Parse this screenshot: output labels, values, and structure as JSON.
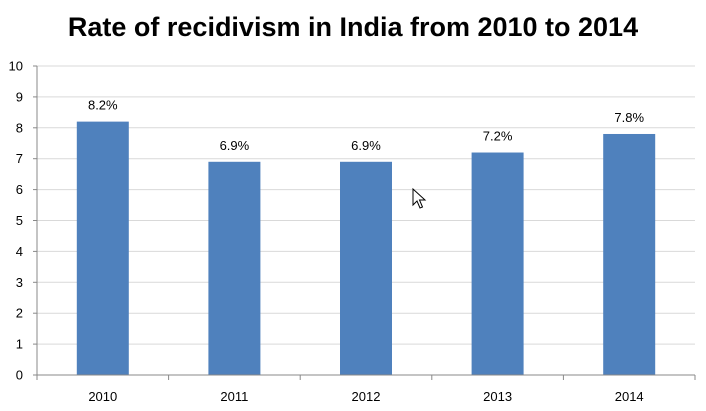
{
  "chart_data": {
    "type": "bar",
    "title": "Rate of recidivism in India from 2010 to 2014",
    "xlabel": "",
    "ylabel": "",
    "categories": [
      "2010",
      "2011",
      "2012",
      "2013",
      "2014"
    ],
    "values": [
      8.2,
      6.9,
      6.9,
      7.2,
      7.8
    ],
    "data_labels": [
      "8.2%",
      "6.9%",
      "6.9%",
      "7.2%",
      "7.8%"
    ],
    "ylim": [
      0,
      10
    ],
    "yticks": [
      "0",
      "1",
      "2",
      "3",
      "4",
      "5",
      "6",
      "7",
      "8",
      "9",
      "10"
    ],
    "grid": true,
    "legend": "none",
    "bar_color": "#4F81BD",
    "grid_color": "#D9D9D9"
  }
}
